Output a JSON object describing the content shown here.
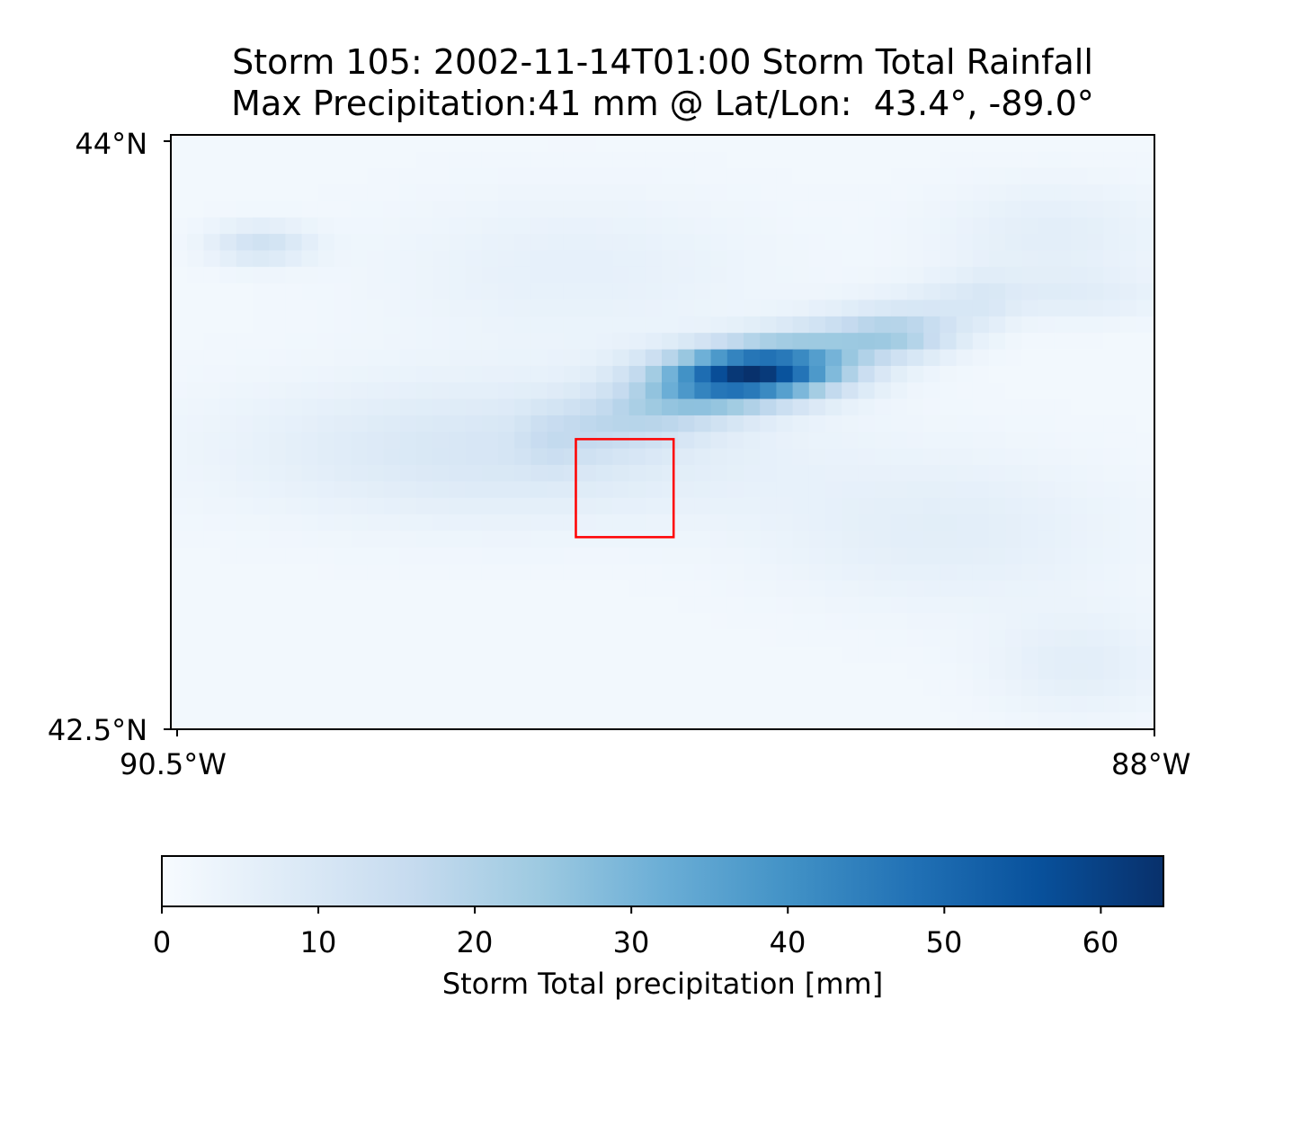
{
  "title": {
    "line1": "Storm 105: 2002-11-14T01:00 Storm Total Rainfall",
    "line2": "Max Precipitation:41 mm @ Lat/Lon:  43.4°, -89.0°"
  },
  "axes": {
    "y_top_label": "44°N",
    "y_bottom_label": "42.5°N",
    "x_left_label": "90.5°W",
    "x_right_label": "88°W"
  },
  "colorbar": {
    "label": "Storm Total precipitation [mm]",
    "ticks": [
      "0",
      "10",
      "20",
      "30",
      "40",
      "50",
      "60"
    ],
    "min": 0,
    "max": 64,
    "colormap": "Blues",
    "stops": [
      "#f7fbff",
      "#deebf7",
      "#c6dbef",
      "#9ecae1",
      "#6baed6",
      "#4292c6",
      "#2171b5",
      "#08519c",
      "#08306b"
    ]
  },
  "map": {
    "lat_range": [
      42.5,
      44.0
    ],
    "lon_range": [
      -90.5,
      -88.0
    ],
    "box_color": "#ff0000",
    "box": {
      "lon_min": -89.48,
      "lon_max": -89.23,
      "lat_min": 42.99,
      "lat_max": 43.24
    },
    "max_point": {
      "lat": 43.4,
      "lon": -89.0,
      "value_mm": 41
    }
  }
}
